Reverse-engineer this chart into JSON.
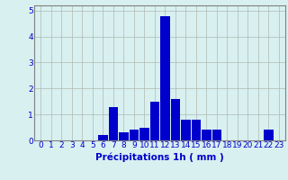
{
  "hours": [
    0,
    1,
    2,
    3,
    4,
    5,
    6,
    7,
    8,
    9,
    10,
    11,
    12,
    13,
    14,
    15,
    16,
    17,
    18,
    19,
    20,
    21,
    22,
    23
  ],
  "values": [
    0,
    0,
    0,
    0,
    0,
    0,
    0.2,
    1.3,
    0.3,
    0.4,
    0.5,
    1.5,
    4.8,
    1.6,
    0.8,
    0.8,
    0.4,
    0.4,
    0,
    0,
    0,
    0,
    0.4,
    0
  ],
  "bar_color": "#0000cc",
  "bg_color": "#d8f0f0",
  "grid_color": "#b0b8b0",
  "xlabel": "Précipitations 1h ( mm )",
  "ylim": [
    0,
    5.2
  ],
  "yticks": [
    0,
    1,
    2,
    3,
    4,
    5
  ],
  "xticks": [
    0,
    1,
    2,
    3,
    4,
    5,
    6,
    7,
    8,
    9,
    10,
    11,
    12,
    13,
    14,
    15,
    16,
    17,
    18,
    19,
    20,
    21,
    22,
    23
  ],
  "tick_color": "#0000cc",
  "xlabel_color": "#0000cc",
  "xlabel_fontsize": 7.5,
  "tick_fontsize": 6.5
}
